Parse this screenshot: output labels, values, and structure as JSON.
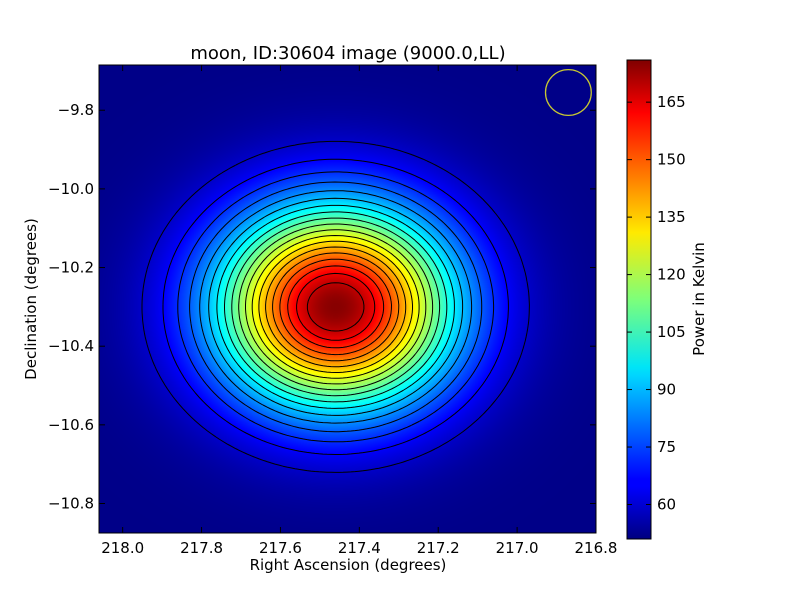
{
  "chart_data": {
    "type": "heatmap",
    "title": "moon, ID:30604 image (9000.0,LL)",
    "xlabel": "Right Ascension (degrees)",
    "ylabel": "Declination (degrees)",
    "xlim": [
      218.06,
      216.8
    ],
    "ylim": [
      -10.875,
      -9.685
    ],
    "x_ticks": [
      218.0,
      217.8,
      217.6,
      217.4,
      217.2,
      217.0,
      216.8
    ],
    "x_tick_labels": [
      "218.0",
      "217.8",
      "217.6",
      "217.4",
      "217.2",
      "217.0",
      "216.8"
    ],
    "y_ticks": [
      -9.8,
      -10.0,
      -10.2,
      -10.4,
      -10.6,
      -10.8
    ],
    "y_tick_labels": [
      "−9.8",
      "−10.0",
      "−10.2",
      "−10.4",
      "−10.6",
      "−10.8"
    ],
    "colormap": "jet",
    "source": {
      "center_ra": 217.46,
      "center_dec": -10.3,
      "peak_value": 175,
      "background_value": 52,
      "sigma_ra": 0.21,
      "sigma_dec": 0.18
    },
    "contours": {
      "levels": [
        60,
        66,
        72,
        78,
        84,
        90,
        96,
        102,
        108,
        114,
        120,
        126,
        132,
        138,
        144,
        150,
        156,
        162,
        168
      ],
      "color": "#000000"
    },
    "beam": {
      "center_ra": 216.87,
      "center_dec": -9.755,
      "radius_deg": 0.058,
      "color": "#c8c832"
    },
    "colorbar": {
      "label": "Power in Kelvin",
      "min": 51,
      "max": 176,
      "ticks": [
        60,
        75,
        90,
        105,
        120,
        135,
        150,
        165
      ],
      "tick_labels": [
        "60",
        "75",
        "90",
        "105",
        "120",
        "135",
        "150",
        "165"
      ]
    },
    "grid": false,
    "legend": "none"
  }
}
